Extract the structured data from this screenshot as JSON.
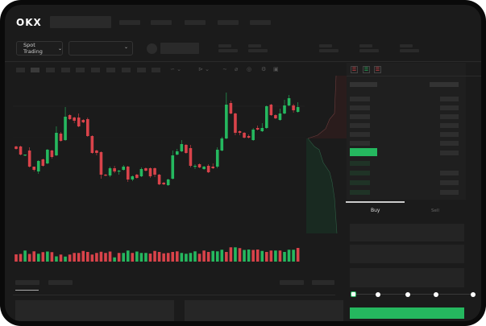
{
  "header": {
    "logo": "OKX"
  },
  "toolbar": {
    "market_select": "Spot Trading",
    "chevron": "⌄"
  },
  "order_book": {
    "icons": [
      "both-sides-icon",
      "bids-only-icon",
      "asks-only-icon"
    ]
  },
  "trade_panel": {
    "tabs": [
      {
        "label": "Buy",
        "active": true
      },
      {
        "label": "Sell",
        "active": false
      }
    ],
    "slider_value_percent": 0,
    "slider_stops": [
      0,
      25,
      50,
      75,
      100
    ]
  },
  "colors": {
    "up": "#25b85f",
    "down": "#d9434a",
    "background": "#1b1b1b",
    "placeholder": "#2a2a2a"
  },
  "chart_data": {
    "type": "candlestick",
    "candles": [
      [
        68,
        69,
        64,
        65
      ],
      [
        68,
        69,
        57,
        58
      ],
      [
        57,
        58,
        56,
        58
      ],
      [
        63,
        67,
        42,
        43
      ],
      [
        43,
        43,
        37,
        39
      ],
      [
        37,
        51,
        34,
        50
      ],
      [
        52,
        53,
        43,
        44
      ],
      [
        47,
        65,
        46,
        64
      ],
      [
        63,
        64,
        53,
        55
      ],
      [
        57,
        93,
        56,
        85
      ],
      [
        84,
        86,
        74,
        75
      ],
      [
        76,
        117,
        75,
        105
      ],
      [
        107,
        108,
        101,
        102
      ],
      [
        104,
        105,
        97,
        100
      ],
      [
        104,
        109,
        92,
        93
      ],
      [
        101,
        102,
        97,
        98
      ],
      [
        102,
        104,
        80,
        81
      ],
      [
        81,
        82,
        59,
        60
      ],
      [
        63,
        64,
        57,
        60
      ],
      [
        61,
        62,
        28,
        33
      ],
      [
        33,
        34,
        31,
        32
      ],
      [
        32,
        43,
        30,
        41
      ],
      [
        41,
        44,
        35,
        37
      ],
      [
        37,
        39,
        33,
        38
      ],
      [
        39,
        45,
        38,
        43
      ],
      [
        43,
        44,
        24,
        27
      ],
      [
        27,
        32,
        25,
        31
      ],
      [
        33,
        34,
        28,
        29
      ],
      [
        31,
        42,
        30,
        40
      ],
      [
        41,
        42,
        37,
        38
      ],
      [
        41,
        42,
        29,
        31
      ],
      [
        41,
        42,
        30,
        33
      ],
      [
        33,
        34,
        20,
        21
      ],
      [
        23,
        24,
        20,
        21
      ],
      [
        20,
        28,
        19,
        27
      ],
      [
        28,
        63,
        27,
        57
      ],
      [
        58,
        65,
        57,
        62
      ],
      [
        62,
        76,
        61,
        71
      ],
      [
        70,
        71,
        59,
        60
      ],
      [
        66,
        70,
        42,
        44
      ],
      [
        43,
        46,
        40,
        44
      ],
      [
        46,
        47,
        41,
        42
      ],
      [
        40,
        44,
        39,
        43
      ],
      [
        44,
        46,
        35,
        36
      ],
      [
        43,
        47,
        40,
        41
      ],
      [
        43,
        67,
        41,
        64
      ],
      [
        63,
        80,
        62,
        78
      ],
      [
        78,
        135,
        77,
        120
      ],
      [
        122,
        125,
        108,
        109
      ],
      [
        109,
        110,
        82,
        85
      ],
      [
        87,
        88,
        82,
        85
      ],
      [
        85,
        86,
        78,
        79
      ],
      [
        81,
        83,
        78,
        79
      ],
      [
        76,
        91,
        75,
        89
      ],
      [
        91,
        94,
        88,
        89
      ],
      [
        87,
        97,
        86,
        91
      ],
      [
        91,
        119,
        90,
        118
      ],
      [
        120,
        121,
        106,
        107
      ],
      [
        107,
        108,
        102,
        103
      ],
      [
        101,
        115,
        100,
        109
      ],
      [
        109,
        126,
        108,
        119
      ],
      [
        119,
        132,
        118,
        128
      ],
      [
        119,
        121,
        110,
        113
      ],
      [
        111,
        123,
        110,
        117
      ]
    ],
    "candle_format": [
      "open",
      "high",
      "low",
      "close"
    ],
    "volume": [
      [
        42,
        "d"
      ],
      [
        40,
        "d"
      ],
      [
        23,
        "u"
      ],
      [
        40,
        "d"
      ],
      [
        27,
        "d"
      ],
      [
        39,
        "u"
      ],
      [
        31,
        "d"
      ],
      [
        28,
        "u"
      ],
      [
        31,
        "d"
      ],
      [
        52,
        "u"
      ],
      [
        43,
        "d"
      ],
      [
        53,
        "u"
      ],
      [
        43,
        "d"
      ],
      [
        35,
        "d"
      ],
      [
        35,
        "d"
      ],
      [
        25,
        "d"
      ],
      [
        30,
        "d"
      ],
      [
        43,
        "d"
      ],
      [
        35,
        "d"
      ],
      [
        29,
        "d"
      ],
      [
        35,
        "d"
      ],
      [
        28,
        "d"
      ],
      [
        57,
        "u"
      ],
      [
        35,
        "d"
      ],
      [
        35,
        "u"
      ],
      [
        23,
        "u"
      ],
      [
        35,
        "d"
      ],
      [
        28,
        "u"
      ],
      [
        35,
        "u"
      ],
      [
        35,
        "u"
      ],
      [
        38,
        "d"
      ],
      [
        25,
        "d"
      ],
      [
        30,
        "d"
      ],
      [
        37,
        "d"
      ],
      [
        35,
        "d"
      ],
      [
        30,
        "d"
      ],
      [
        27,
        "d"
      ],
      [
        35,
        "u"
      ],
      [
        39,
        "u"
      ],
      [
        35,
        "u"
      ],
      [
        27,
        "u"
      ],
      [
        39,
        "d"
      ],
      [
        23,
        "d"
      ],
      [
        30,
        "d"
      ],
      [
        25,
        "u"
      ],
      [
        27,
        "u"
      ],
      [
        19,
        "u"
      ],
      [
        30,
        "d"
      ],
      [
        7,
        "d"
      ],
      [
        7,
        "u"
      ],
      [
        11,
        "d"
      ],
      [
        20,
        "u"
      ],
      [
        18,
        "u"
      ],
      [
        20,
        "d"
      ],
      [
        18,
        "d"
      ],
      [
        25,
        "u"
      ],
      [
        30,
        "d"
      ],
      [
        23,
        "d"
      ],
      [
        23,
        "u"
      ],
      [
        23,
        "d"
      ],
      [
        30,
        "u"
      ],
      [
        19,
        "u"
      ],
      [
        19,
        "u"
      ],
      [
        10,
        "d"
      ]
    ]
  }
}
